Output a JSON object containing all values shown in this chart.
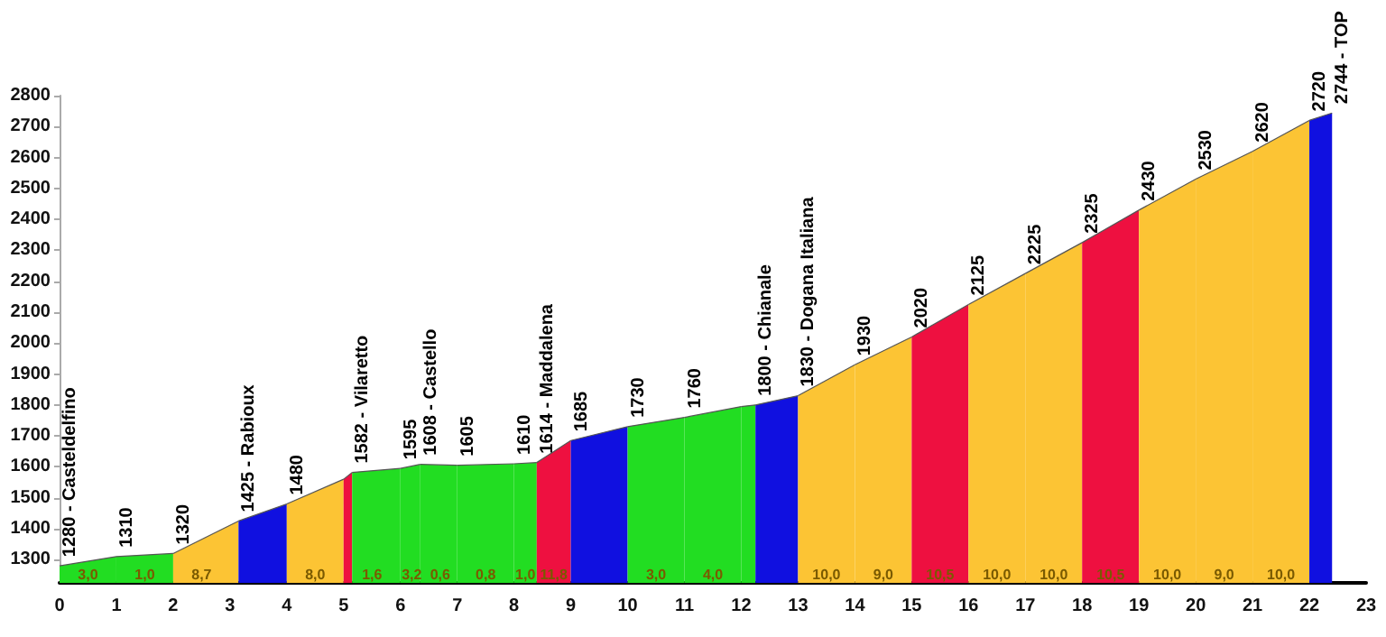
{
  "chart_data": {
    "type": "area",
    "xlim": [
      0,
      23
    ],
    "xticks": [
      0,
      1,
      2,
      3,
      4,
      5,
      6,
      7,
      8,
      9,
      10,
      11,
      12,
      13,
      14,
      15,
      16,
      17,
      18,
      19,
      20,
      21,
      22,
      23
    ],
    "ylim": [
      1225,
      2800
    ],
    "yticks": [
      1300,
      1400,
      1500,
      1600,
      1700,
      1800,
      1900,
      2000,
      2100,
      2200,
      2300,
      2400,
      2500,
      2600,
      2700,
      2800
    ],
    "grid": false,
    "series": [
      {
        "color": "#22dd22",
        "x": [
          0,
          1
        ],
        "values": [
          1280,
          1310
        ]
      },
      {
        "color": "#22dd22",
        "x": [
          1,
          2
        ],
        "values": [
          1310,
          1320
        ]
      },
      {
        "color": "#fcc434",
        "x": [
          2,
          3.15
        ],
        "values": [
          1320,
          1425
        ]
      },
      {
        "color": "#1010e0",
        "x": [
          3.15,
          4
        ],
        "values": [
          1425,
          1480
        ]
      },
      {
        "color": "#fcc434",
        "x": [
          4,
          5
        ],
        "values": [
          1480,
          1560
        ]
      },
      {
        "color": "#ee1040",
        "x": [
          5,
          5.15
        ],
        "values": [
          1560,
          1582
        ]
      },
      {
        "color": "#22dd22",
        "x": [
          5.15,
          6
        ],
        "values": [
          1582,
          1595
        ]
      },
      {
        "color": "#22dd22",
        "x": [
          6,
          6.35
        ],
        "values": [
          1595,
          1608
        ]
      },
      {
        "color": "#22dd22",
        "x": [
          6.35,
          7
        ],
        "values": [
          1608,
          1605
        ]
      },
      {
        "color": "#22dd22",
        "x": [
          7,
          8
        ],
        "values": [
          1605,
          1610
        ]
      },
      {
        "color": "#22dd22",
        "x": [
          8,
          8.4
        ],
        "values": [
          1610,
          1614
        ]
      },
      {
        "color": "#ee1040",
        "x": [
          8.4,
          9
        ],
        "values": [
          1614,
          1685
        ]
      },
      {
        "color": "#1010e0",
        "x": [
          9,
          10
        ],
        "values": [
          1685,
          1730
        ]
      },
      {
        "color": "#22dd22",
        "x": [
          10,
          11
        ],
        "values": [
          1730,
          1760
        ]
      },
      {
        "color": "#22dd22",
        "x": [
          11,
          12
        ],
        "values": [
          1760,
          1795
        ]
      },
      {
        "color": "#22dd22",
        "x": [
          12,
          12.25
        ],
        "values": [
          1795,
          1800
        ]
      },
      {
        "color": "#1010e0",
        "x": [
          12.25,
          13
        ],
        "values": [
          1800,
          1830
        ]
      },
      {
        "color": "#fcc434",
        "x": [
          13,
          14
        ],
        "values": [
          1830,
          1930
        ]
      },
      {
        "color": "#fcc434",
        "x": [
          14,
          15
        ],
        "values": [
          1930,
          2020
        ]
      },
      {
        "color": "#ee1040",
        "x": [
          15,
          16
        ],
        "values": [
          2020,
          2125
        ]
      },
      {
        "color": "#fcc434",
        "x": [
          16,
          17
        ],
        "values": [
          2125,
          2225
        ]
      },
      {
        "color": "#fcc434",
        "x": [
          17,
          18
        ],
        "values": [
          2225,
          2325
        ]
      },
      {
        "color": "#ee1040",
        "x": [
          18,
          19
        ],
        "values": [
          2325,
          2430
        ]
      },
      {
        "color": "#fcc434",
        "x": [
          19,
          20
        ],
        "values": [
          2430,
          2530
        ]
      },
      {
        "color": "#fcc434",
        "x": [
          20,
          21
        ],
        "values": [
          2530,
          2620
        ]
      },
      {
        "color": "#fcc434",
        "x": [
          21,
          22
        ],
        "values": [
          2620,
          2720
        ]
      },
      {
        "color": "#1010e0",
        "x": [
          22,
          22.4
        ],
        "values": [
          2720,
          2744
        ]
      }
    ],
    "annotations": [
      {
        "text": "1280 - Casteldelfino",
        "x": 0,
        "y": 1280
      },
      {
        "text": "1310",
        "x": 1,
        "y": 1310
      },
      {
        "text": "1320",
        "x": 2,
        "y": 1320
      },
      {
        "text": "1425 - Rabioux",
        "x": 3.15,
        "y": 1425
      },
      {
        "text": "1480",
        "x": 4,
        "y": 1480
      },
      {
        "text": "1582 - Vilaretto",
        "x": 5.15,
        "y": 1582
      },
      {
        "text": "1595",
        "x": 6,
        "y": 1595
      },
      {
        "text": "1608 - Castello",
        "x": 6.35,
        "y": 1608
      },
      {
        "text": "1605",
        "x": 7,
        "y": 1605
      },
      {
        "text": "1610",
        "x": 8,
        "y": 1610
      },
      {
        "text": "1614 - Maddalena",
        "x": 8.4,
        "y": 1614
      },
      {
        "text": "1685",
        "x": 9,
        "y": 1685
      },
      {
        "text": "1730",
        "x": 10,
        "y": 1730
      },
      {
        "text": "1760",
        "x": 11,
        "y": 1760
      },
      {
        "text": "1800 - Chianale",
        "x": 12.25,
        "y": 1800
      },
      {
        "text": "1830 - Dogana Italiana",
        "x": 13,
        "y": 1830
      },
      {
        "text": "1930",
        "x": 14,
        "y": 1930
      },
      {
        "text": "2020",
        "x": 15,
        "y": 2020
      },
      {
        "text": "2125",
        "x": 16,
        "y": 2125
      },
      {
        "text": "2225",
        "x": 17,
        "y": 2225
      },
      {
        "text": "2325",
        "x": 18,
        "y": 2325
      },
      {
        "text": "2430",
        "x": 19,
        "y": 2430
      },
      {
        "text": "2530",
        "x": 20,
        "y": 2530
      },
      {
        "text": "2620",
        "x": 21,
        "y": 2620
      },
      {
        "text": "2720",
        "x": 22,
        "y": 2720
      },
      {
        "text": "2744 - TOP",
        "x": 22.4,
        "y": 2744
      },
      {
        "text": "3,0",
        "x": 0.5,
        "y": 1250
      },
      {
        "text": "1,0",
        "x": 1.5,
        "y": 1250
      },
      {
        "text": "8,7",
        "x": 2.5,
        "y": 1250
      },
      {
        "text": "8,0",
        "x": 4.5,
        "y": 1250
      },
      {
        "text": "1,6",
        "x": 5.5,
        "y": 1250
      },
      {
        "text": "3,2",
        "x": 6.2,
        "y": 1250
      },
      {
        "text": "0,6",
        "x": 6.7,
        "y": 1250
      },
      {
        "text": "0,8",
        "x": 7.5,
        "y": 1250
      },
      {
        "text": "1,0",
        "x": 8.2,
        "y": 1250
      },
      {
        "text": "11,8",
        "x": 8.7,
        "y": 1250
      },
      {
        "text": "3,0",
        "x": 10.5,
        "y": 1250
      },
      {
        "text": "4,0",
        "x": 11.5,
        "y": 1250
      },
      {
        "text": "10,0",
        "x": 13.5,
        "y": 1250
      },
      {
        "text": "9,0",
        "x": 14.5,
        "y": 1250
      },
      {
        "text": "10,5",
        "x": 15.5,
        "y": 1250
      },
      {
        "text": "10,0",
        "x": 16.5,
        "y": 1250
      },
      {
        "text": "10,0",
        "x": 17.5,
        "y": 1250
      },
      {
        "text": "10,5",
        "x": 18.5,
        "y": 1250
      },
      {
        "text": "10,0",
        "x": 19.5,
        "y": 1250
      },
      {
        "text": "9,0",
        "x": 20.5,
        "y": 1250
      },
      {
        "text": "10,0",
        "x": 21.5,
        "y": 1250
      }
    ]
  }
}
